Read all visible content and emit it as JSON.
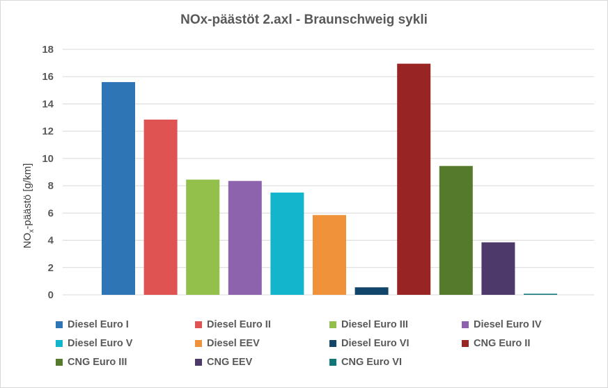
{
  "chart_data": {
    "type": "bar",
    "title": "NOx-päästöt 2.axl - Braunschweig sykli",
    "ylabel_main": "NO",
    "ylabel_sub": "x",
    "ylabel_rest": "-päästö [g/km]",
    "ylim": [
      0,
      18
    ],
    "yticks": [
      "0",
      "2",
      "4",
      "6",
      "8",
      "10",
      "12",
      "14",
      "16",
      "18"
    ],
    "grid": true,
    "legend_position": "bottom",
    "series": [
      {
        "name": "Diesel Euro I",
        "value": 15.6,
        "color": "#2e75b6"
      },
      {
        "name": "Diesel Euro II",
        "value": 12.85,
        "color": "#e05353"
      },
      {
        "name": "Diesel Euro III",
        "value": 8.45,
        "color": "#92c04b"
      },
      {
        "name": "Diesel Euro IV",
        "value": 8.35,
        "color": "#8e63ad"
      },
      {
        "name": "Diesel Euro V",
        "value": 7.5,
        "color": "#12b5cb"
      },
      {
        "name": "Diesel EEV",
        "value": 5.85,
        "color": "#f0923a"
      },
      {
        "name": "Diesel Euro VI",
        "value": 0.55,
        "color": "#12456a"
      },
      {
        "name": "CNG Euro II",
        "value": 16.95,
        "color": "#982424"
      },
      {
        "name": "CNG Euro III",
        "value": 9.45,
        "color": "#567a2c"
      },
      {
        "name": "CNG EEV",
        "value": 3.85,
        "color": "#4d3a6b"
      },
      {
        "name": "CNG Euro VI",
        "value": 0.08,
        "color": "#0f7777"
      }
    ]
  }
}
